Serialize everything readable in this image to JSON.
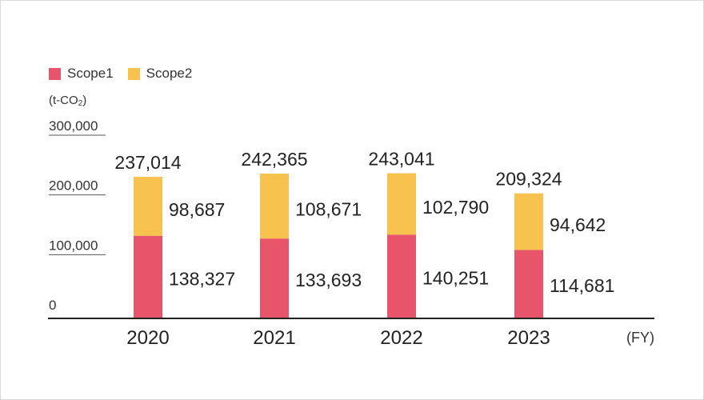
{
  "chart_data": {
    "type": "bar",
    "stacked": true,
    "categories": [
      "2020",
      "2021",
      "2022",
      "2023"
    ],
    "series": [
      {
        "name": "Scope1",
        "color": "#e8546a",
        "values": [
          138327,
          133693,
          140251,
          114681
        ],
        "labels": [
          "138,327",
          "133,693",
          "140,251",
          "114,681"
        ]
      },
      {
        "name": "Scope2",
        "color": "#f8c24e",
        "values": [
          98687,
          108671,
          102790,
          94642
        ],
        "labels": [
          "98,687",
          "108,671",
          "102,790",
          "94,642"
        ]
      }
    ],
    "totals": [
      237014,
      242365,
      243041,
      209324
    ],
    "total_labels": [
      "237,014",
      "242,365",
      "243,041",
      "209,324"
    ],
    "ylim": [
      0,
      300000
    ],
    "yticks": [
      0,
      100000,
      200000,
      300000
    ],
    "ytick_labels": [
      "0",
      "100,000",
      "200,000",
      "300,000"
    ],
    "ylabel_unit": {
      "main": "(t-CO",
      "sub": "2",
      "end": ")"
    },
    "xlabel_unit": "(FY)",
    "legend_position": "top-left",
    "grid": false
  }
}
